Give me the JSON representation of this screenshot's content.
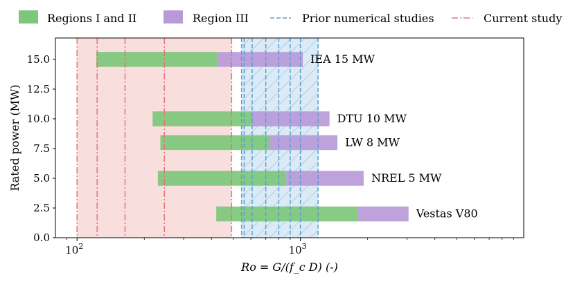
{
  "chart_data": {
    "type": "bar",
    "orientation": "horizontal",
    "xscale": "log",
    "xlim": [
      80,
      10000
    ],
    "ylim": [
      0,
      16.8
    ],
    "xlabel": "Ro = G/(f_c D) (-)",
    "ylabel": "Rated power (MW)",
    "xticks": [
      {
        "value": 100,
        "base": "10",
        "exp": "2"
      },
      {
        "value": 1000,
        "base": "10",
        "exp": "3"
      }
    ],
    "yticks": [
      0.0,
      2.5,
      5.0,
      7.5,
      10.0,
      12.5,
      15.0
    ],
    "ytick_labels": [
      "0.0",
      "2.5",
      "5.0",
      "7.5",
      "10.0",
      "12.5",
      "15.0"
    ],
    "bar_height": 1.25,
    "turbines": [
      {
        "name": "IEA 15 MW",
        "power": 15,
        "regions_1_2": [
          122,
          425
        ],
        "region_3": [
          425,
          1025
        ]
      },
      {
        "name": "DTU 10 MW",
        "power": 10,
        "regions_1_2": [
          218,
          608
        ],
        "region_3": [
          608,
          1350
        ]
      },
      {
        "name": "LW 8 MW",
        "power": 8,
        "regions_1_2": [
          236,
          722
        ],
        "region_3": [
          722,
          1465
        ]
      },
      {
        "name": "NREL 5 MW",
        "power": 5,
        "regions_1_2": [
          230,
          865
        ],
        "region_3": [
          865,
          1920
        ]
      },
      {
        "name": "Vestas V80",
        "power": 2,
        "regions_1_2": [
          420,
          1800
        ],
        "region_3": [
          1800,
          3050
        ]
      }
    ],
    "current_study_lines": [
      100,
      123,
      164,
      246,
      492
    ],
    "current_study_span": [
      100,
      492
    ],
    "prior_studies_lines": [
      545,
      560,
      608,
      700,
      800,
      900,
      1000,
      1200
    ],
    "prior_studies_span": [
      545,
      1200
    ],
    "series_colors": {
      "regions_1_2": "#7dc77a",
      "region_3": "#b99ad8",
      "prior_studies": "#5b9fd0",
      "current_study": "#e57373"
    }
  },
  "legend": {
    "items": [
      {
        "label": "Regions I and II",
        "kind": "patch",
        "color": "#7dc77a"
      },
      {
        "label": "Region III",
        "kind": "patch",
        "color": "#b99ad8"
      },
      {
        "label": "Prior numerical studies",
        "kind": "dash",
        "color": "#5b9fd0"
      },
      {
        "label": "Current study",
        "kind": "dashdot",
        "color": "#e57373"
      }
    ]
  }
}
